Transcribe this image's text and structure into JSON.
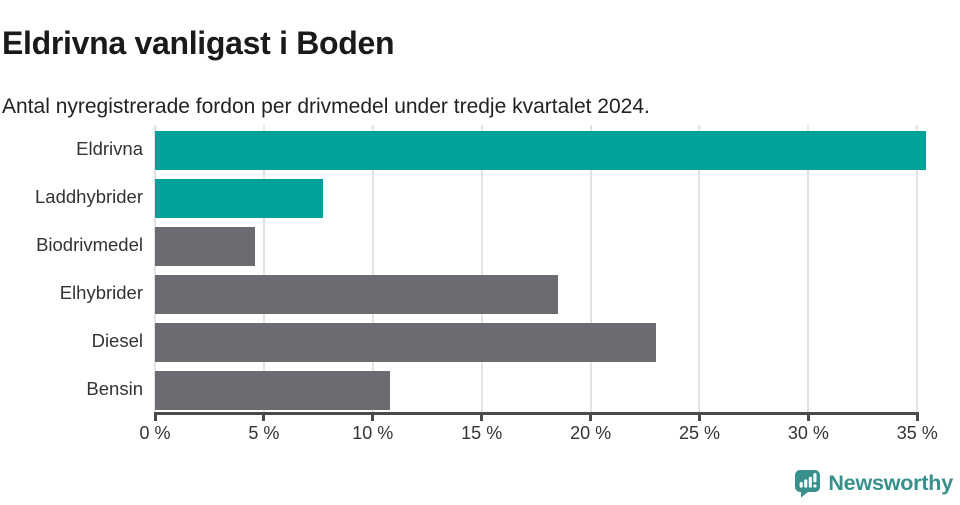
{
  "header": {
    "title": "Eldrivna vanligast i Boden",
    "subtitle": "Antal nyregistrerade fordon per drivmedel under tredje kvartalet 2024."
  },
  "chart_data": {
    "type": "bar",
    "orientation": "horizontal",
    "title": "Eldrivna vanligast i Boden",
    "subtitle": "Antal nyregistrerade fordon per drivmedel under tredje kvartalet 2024.",
    "categories": [
      "Eldrivna",
      "Laddhybrider",
      "Biodrivmedel",
      "Elhybrider",
      "Diesel",
      "Bensin"
    ],
    "values": [
      35.4,
      7.7,
      4.6,
      18.5,
      23.0,
      10.8
    ],
    "unit": "%",
    "bar_colors": [
      "#00A29A",
      "#00A29A",
      "#6C6B72",
      "#6C6B72",
      "#6C6B72",
      "#6C6B72"
    ],
    "xlim": [
      0,
      35.4
    ],
    "x_ticks": [
      0,
      5,
      10,
      15,
      20,
      25,
      30,
      35
    ],
    "x_tick_labels": [
      "0 %",
      "5 %",
      "10 %",
      "15 %",
      "20 %",
      "25 %",
      "30 %",
      "35 %"
    ],
    "xlabel": "",
    "ylabel": "",
    "grid": "vertical-gridlines",
    "legend": "none"
  },
  "colors": {
    "accent_teal": "#00A29A",
    "muted_gray": "#6C6B72",
    "axis": "#4A4A4A",
    "gridline": "#E3E3E3",
    "title_text": "#1A1A1A",
    "logo_teal": "#38908C"
  },
  "footer": {
    "brand": "Newsworthy"
  }
}
